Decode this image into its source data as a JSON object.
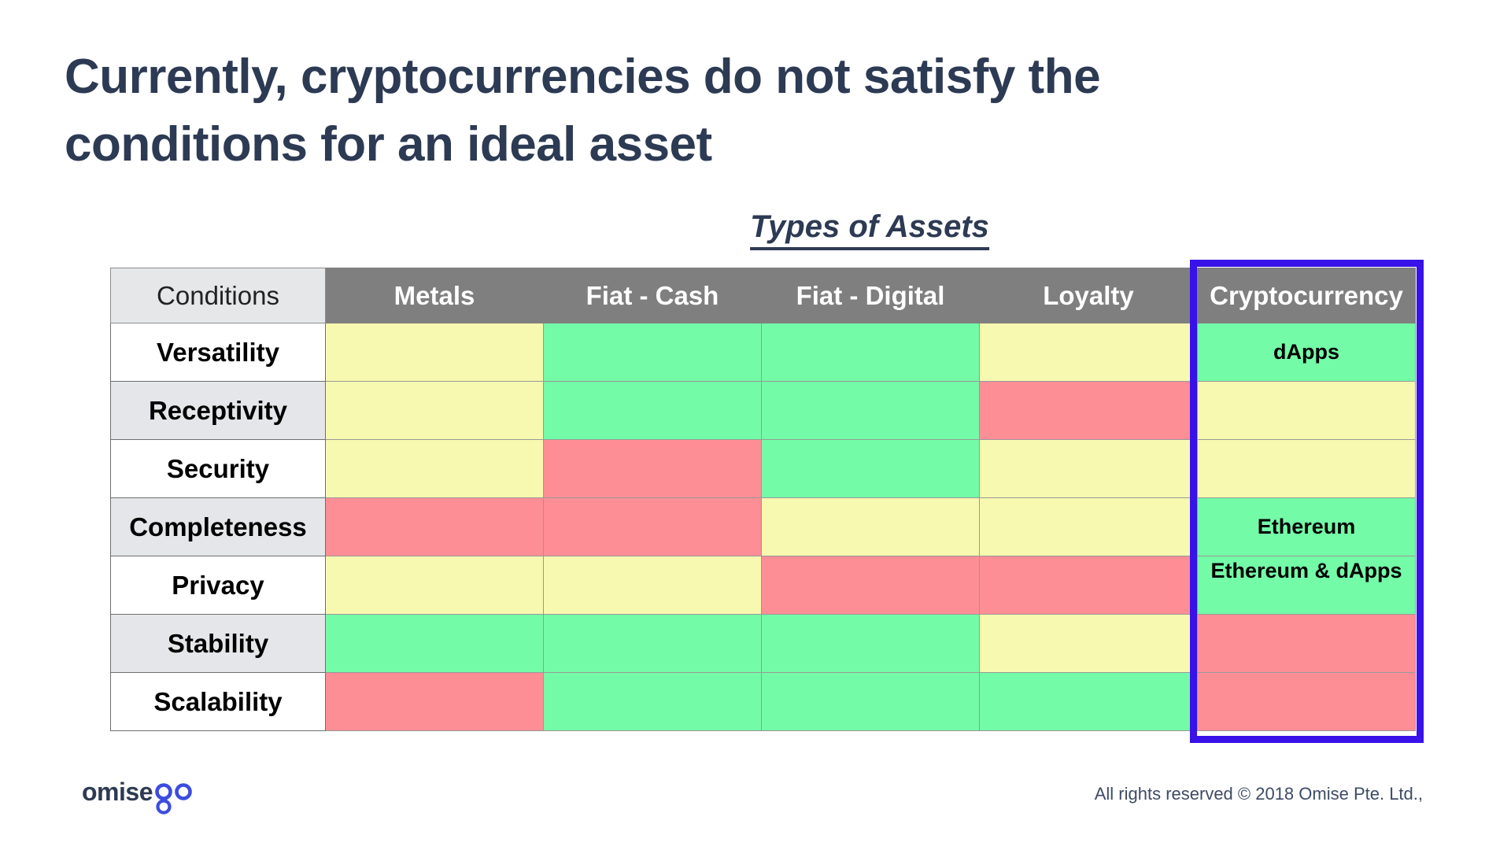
{
  "title": {
    "line1": "Currently, cryptocurrencies do not satisfy the",
    "line2": "conditions for an ideal asset"
  },
  "subtitle": "Types of Assets",
  "table": {
    "corner_header": "Conditions",
    "columns": [
      "Metals",
      "Fiat - Cash",
      "Fiat - Digital",
      "Loyalty",
      "Cryptocurrency"
    ],
    "highlighted_column": "Cryptocurrency",
    "colors": {
      "good": "#74fba7",
      "medium": "#f8f9b0",
      "bad": "#fd8e96",
      "highlight_border": "#3812e8",
      "header_bg": "#7f7f7f",
      "label_alt_bg": "#e4e6e9"
    },
    "rows": [
      {
        "label": "Versatility",
        "cells": [
          {
            "rating": "medium",
            "text": ""
          },
          {
            "rating": "good",
            "text": ""
          },
          {
            "rating": "good",
            "text": ""
          },
          {
            "rating": "medium",
            "text": ""
          },
          {
            "rating": "good",
            "text": "dApps"
          }
        ]
      },
      {
        "label": "Receptivity",
        "cells": [
          {
            "rating": "medium",
            "text": ""
          },
          {
            "rating": "good",
            "text": ""
          },
          {
            "rating": "good",
            "text": ""
          },
          {
            "rating": "bad",
            "text": ""
          },
          {
            "rating": "medium",
            "text": ""
          }
        ]
      },
      {
        "label": "Security",
        "cells": [
          {
            "rating": "medium",
            "text": ""
          },
          {
            "rating": "bad",
            "text": ""
          },
          {
            "rating": "good",
            "text": ""
          },
          {
            "rating": "medium",
            "text": ""
          },
          {
            "rating": "medium",
            "text": ""
          }
        ]
      },
      {
        "label": "Completeness",
        "cells": [
          {
            "rating": "bad",
            "text": ""
          },
          {
            "rating": "bad",
            "text": ""
          },
          {
            "rating": "medium",
            "text": ""
          },
          {
            "rating": "medium",
            "text": ""
          },
          {
            "rating": "good",
            "text": "Ethereum"
          }
        ]
      },
      {
        "label": "Privacy",
        "cells": [
          {
            "rating": "medium",
            "text": ""
          },
          {
            "rating": "medium",
            "text": ""
          },
          {
            "rating": "bad",
            "text": ""
          },
          {
            "rating": "bad",
            "text": ""
          },
          {
            "rating": "good",
            "text": "Ethereum & dApps",
            "text_top": true
          }
        ]
      },
      {
        "label": "Stability",
        "cells": [
          {
            "rating": "good",
            "text": ""
          },
          {
            "rating": "good",
            "text": ""
          },
          {
            "rating": "good",
            "text": ""
          },
          {
            "rating": "medium",
            "text": ""
          },
          {
            "rating": "bad",
            "text": ""
          }
        ]
      },
      {
        "label": "Scalability",
        "cells": [
          {
            "rating": "bad",
            "text": ""
          },
          {
            "rating": "good",
            "text": ""
          },
          {
            "rating": "good",
            "text": ""
          },
          {
            "rating": "good",
            "text": ""
          },
          {
            "rating": "bad",
            "text": ""
          }
        ]
      }
    ]
  },
  "footer": {
    "logo_text": "omise",
    "logo_accent": "go",
    "logo_accent_color": "#3b4ce0",
    "copyright": "All rights reserved © 2018 Omise Pte. Ltd.,"
  }
}
